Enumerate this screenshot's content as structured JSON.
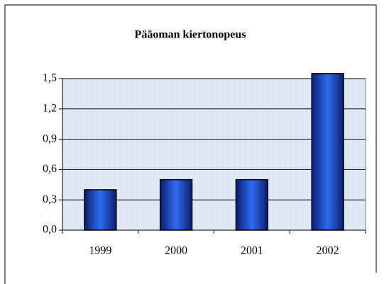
{
  "chart_data": {
    "type": "bar",
    "title": "Pääoman kiertonopeus",
    "categories": [
      "1999",
      "2000",
      "2001",
      "2002"
    ],
    "values": [
      0.4,
      0.5,
      0.5,
      1.55
    ],
    "color": "#1f4fd0",
    "ylim": [
      0,
      1.5
    ],
    "yticks": [
      {
        "value": 0,
        "label": "0,0"
      },
      {
        "value": 0.3,
        "label": "0,3"
      },
      {
        "value": 0.6,
        "label": "0,6"
      },
      {
        "value": 0.9,
        "label": "0,9"
      },
      {
        "value": 1.2,
        "label": "1,2"
      },
      {
        "value": 1.5,
        "label": "1,5"
      }
    ],
    "grid": true
  }
}
